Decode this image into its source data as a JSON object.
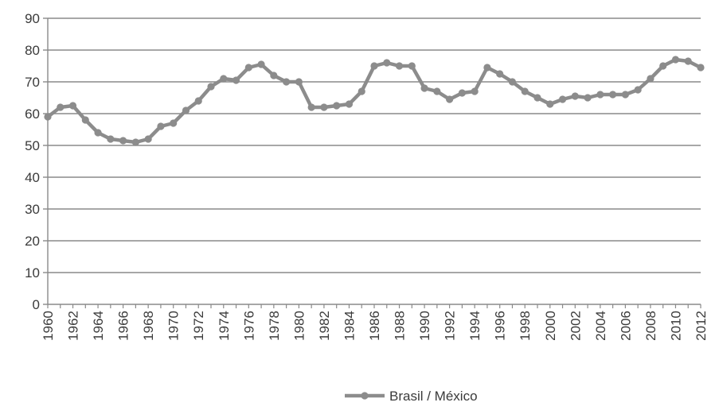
{
  "chart_data": {
    "type": "line",
    "title": "",
    "xlabel": "",
    "ylabel": "",
    "ylim": [
      0,
      90
    ],
    "y_ticks": [
      0,
      10,
      20,
      30,
      40,
      50,
      60,
      70,
      80,
      90
    ],
    "x": [
      1960,
      1961,
      1962,
      1963,
      1964,
      1965,
      1966,
      1967,
      1968,
      1969,
      1970,
      1971,
      1972,
      1973,
      1974,
      1975,
      1976,
      1977,
      1978,
      1979,
      1980,
      1981,
      1982,
      1983,
      1984,
      1985,
      1986,
      1987,
      1988,
      1989,
      1990,
      1991,
      1992,
      1993,
      1994,
      1995,
      1996,
      1997,
      1998,
      1999,
      2000,
      2001,
      2002,
      2003,
      2004,
      2005,
      2006,
      2007,
      2008,
      2009,
      2010,
      2011,
      2012
    ],
    "x_tick_labels": [
      "1960",
      "1962",
      "1964",
      "1966",
      "1968",
      "1970",
      "1972",
      "1974",
      "1976",
      "1978",
      "1980",
      "1982",
      "1984",
      "1986",
      "1988",
      "1990",
      "1992",
      "1994",
      "1996",
      "1998",
      "2000",
      "2002",
      "2004",
      "2006",
      "2008",
      "2010",
      "2012"
    ],
    "grid": true,
    "legend_position": "bottom",
    "series": [
      {
        "name": "Brasil / México",
        "color": "#8c8c8c",
        "values": [
          59,
          62,
          62.5,
          58,
          54,
          52,
          51.5,
          51,
          52,
          56,
          57,
          61,
          64,
          68.5,
          71,
          70.5,
          74.5,
          75.5,
          72,
          70,
          70,
          62,
          62,
          62.5,
          63,
          67,
          75,
          76,
          75,
          75,
          68,
          67,
          64.5,
          66.5,
          67,
          74.5,
          72.5,
          70,
          67,
          65,
          63,
          64.5,
          65.5,
          65,
          66,
          66,
          66,
          67.5,
          71,
          75,
          77,
          76.5,
          74.5
        ]
      }
    ]
  }
}
